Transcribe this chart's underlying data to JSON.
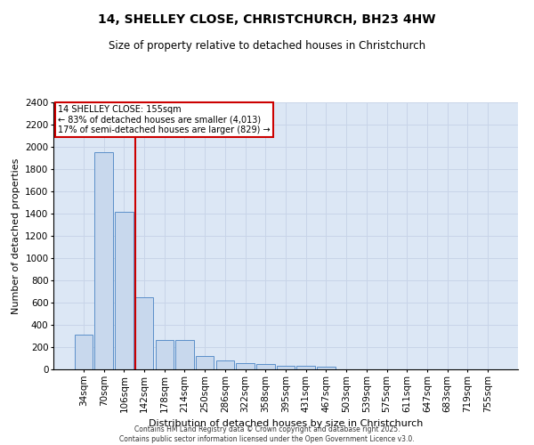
{
  "title": "14, SHELLEY CLOSE, CHRISTCHURCH, BH23 4HW",
  "subtitle": "Size of property relative to detached houses in Christchurch",
  "xlabel": "Distribution of detached houses by size in Christchurch",
  "ylabel": "Number of detached properties",
  "footer_line1": "Contains HM Land Registry data © Crown copyright and database right 2025.",
  "footer_line2": "Contains public sector information licensed under the Open Government Licence v3.0.",
  "categories": [
    "34sqm",
    "70sqm",
    "106sqm",
    "142sqm",
    "178sqm",
    "214sqm",
    "250sqm",
    "286sqm",
    "322sqm",
    "358sqm",
    "395sqm",
    "431sqm",
    "467sqm",
    "503sqm",
    "539sqm",
    "575sqm",
    "611sqm",
    "647sqm",
    "683sqm",
    "719sqm",
    "755sqm"
  ],
  "values": [
    310,
    1950,
    1420,
    650,
    265,
    265,
    120,
    80,
    60,
    50,
    35,
    30,
    25,
    0,
    0,
    0,
    0,
    0,
    0,
    0,
    0
  ],
  "bar_color": "#c8d8ed",
  "bar_edge_color": "#5b8fc9",
  "grid_color": "#c8d4e8",
  "background_color": "#dce7f5",
  "annotation_line1": "14 SHELLEY CLOSE: 155sqm",
  "annotation_line2": "← 83% of detached houses are smaller (4,013)",
  "annotation_line3": "17% of semi-detached houses are larger (829) →",
  "annotation_box_edge_color": "#cc0000",
  "red_line_x": 2.55,
  "ylim": [
    0,
    2400
  ],
  "yticks": [
    0,
    200,
    400,
    600,
    800,
    1000,
    1200,
    1400,
    1600,
    1800,
    2000,
    2200,
    2400
  ],
  "title_fontsize": 10,
  "subtitle_fontsize": 8.5,
  "axis_label_fontsize": 8,
  "tick_fontsize": 7.5,
  "annotation_fontsize": 7,
  "footer_fontsize": 5.5
}
